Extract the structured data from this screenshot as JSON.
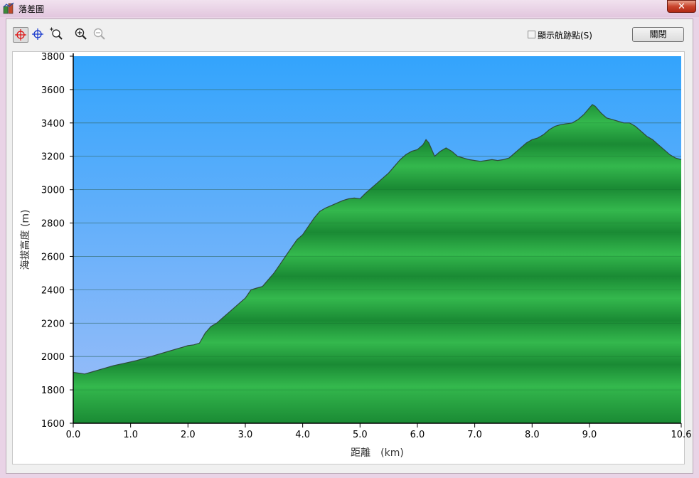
{
  "window": {
    "title": "落差圖",
    "close_glyph": "✕"
  },
  "toolbar": {
    "tools": [
      {
        "name": "crosshair-red-icon",
        "active": true
      },
      {
        "name": "crosshair-blue-icon",
        "active": false
      },
      {
        "name": "zoom-region-icon",
        "active": false
      },
      {
        "name": "zoom-in-icon",
        "active": false
      },
      {
        "name": "zoom-out-icon",
        "active": false
      }
    ],
    "show_track_points_label": "顯示航跡點(S)",
    "show_track_points_checked": false,
    "close_label": "關閉"
  },
  "colors": {
    "sky_top": "#33a4fc",
    "sky_bottom": "#9fbef8",
    "terrain_light": "#34b84d",
    "terrain_dark": "#1a8a34",
    "outline": "#2f4a3a",
    "grid": "#4a7a98"
  },
  "chart_data": {
    "type": "area",
    "title": "",
    "xlabel": "距離　(km)",
    "ylabel": "海拔高度 (m)",
    "xlim": [
      0.0,
      10.6
    ],
    "ylim": [
      1600,
      3800
    ],
    "x_ticks": [
      0.0,
      1.0,
      2.0,
      3.0,
      4.0,
      5.0,
      6.0,
      7.0,
      8.0,
      9.0,
      10.6
    ],
    "x_tick_labels": [
      "0.0",
      "1.0",
      "2.0",
      "3.0",
      "4.0",
      "5.0",
      "6.0",
      "7.0",
      "8.0",
      "9.0",
      "10.6"
    ],
    "y_ticks": [
      1600,
      1800,
      2000,
      2200,
      2400,
      2600,
      2800,
      3000,
      3200,
      3400,
      3600,
      3800
    ],
    "y_tick_labels": [
      "1600",
      "1800",
      "2000",
      "2200",
      "2400",
      "2600",
      "2800",
      "3000",
      "3200",
      "3400",
      "3600",
      "3800"
    ],
    "grid": true,
    "series": [
      {
        "x": [
          0.0,
          0.1,
          0.2,
          0.3,
          0.5,
          0.7,
          0.9,
          1.1,
          1.3,
          1.5,
          1.7,
          1.9,
          2.0,
          2.1,
          2.2,
          2.3,
          2.4,
          2.5,
          2.6,
          2.7,
          2.8,
          2.9,
          3.0,
          3.1,
          3.2,
          3.3,
          3.4,
          3.5,
          3.6,
          3.7,
          3.8,
          3.9,
          4.0,
          4.1,
          4.2,
          4.3,
          4.4,
          4.5,
          4.6,
          4.7,
          4.8,
          4.9,
          5.0,
          5.1,
          5.2,
          5.3,
          5.4,
          5.5,
          5.6,
          5.7,
          5.8,
          5.9,
          6.0,
          6.1,
          6.15,
          6.2,
          6.3,
          6.4,
          6.5,
          6.6,
          6.7,
          6.8,
          6.9,
          7.0,
          7.1,
          7.2,
          7.3,
          7.4,
          7.5,
          7.6,
          7.7,
          7.8,
          7.9,
          8.0,
          8.1,
          8.2,
          8.3,
          8.4,
          8.5,
          8.6,
          8.7,
          8.8,
          8.9,
          9.0,
          9.05,
          9.1,
          9.2,
          9.3,
          9.4,
          9.5,
          9.6,
          9.7,
          9.8,
          9.9,
          10.0,
          10.1,
          10.2,
          10.3,
          10.4,
          10.5,
          10.6
        ],
        "values": [
          1905,
          1900,
          1895,
          1905,
          1925,
          1945,
          1960,
          1975,
          1995,
          2015,
          2035,
          2055,
          2065,
          2070,
          2080,
          2140,
          2180,
          2200,
          2230,
          2260,
          2290,
          2320,
          2350,
          2400,
          2410,
          2420,
          2460,
          2500,
          2550,
          2600,
          2650,
          2700,
          2730,
          2780,
          2830,
          2870,
          2890,
          2905,
          2920,
          2935,
          2945,
          2950,
          2945,
          2980,
          3010,
          3040,
          3070,
          3100,
          3140,
          3180,
          3210,
          3230,
          3240,
          3270,
          3300,
          3280,
          3200,
          3230,
          3250,
          3230,
          3200,
          3190,
          3180,
          3175,
          3170,
          3175,
          3180,
          3175,
          3180,
          3190,
          3220,
          3250,
          3280,
          3300,
          3310,
          3330,
          3360,
          3380,
          3390,
          3395,
          3400,
          3420,
          3450,
          3490,
          3510,
          3500,
          3460,
          3430,
          3420,
          3410,
          3400,
          3400,
          3380,
          3350,
          3320,
          3300,
          3270,
          3240,
          3210,
          3190,
          3180
        ]
      }
    ]
  }
}
